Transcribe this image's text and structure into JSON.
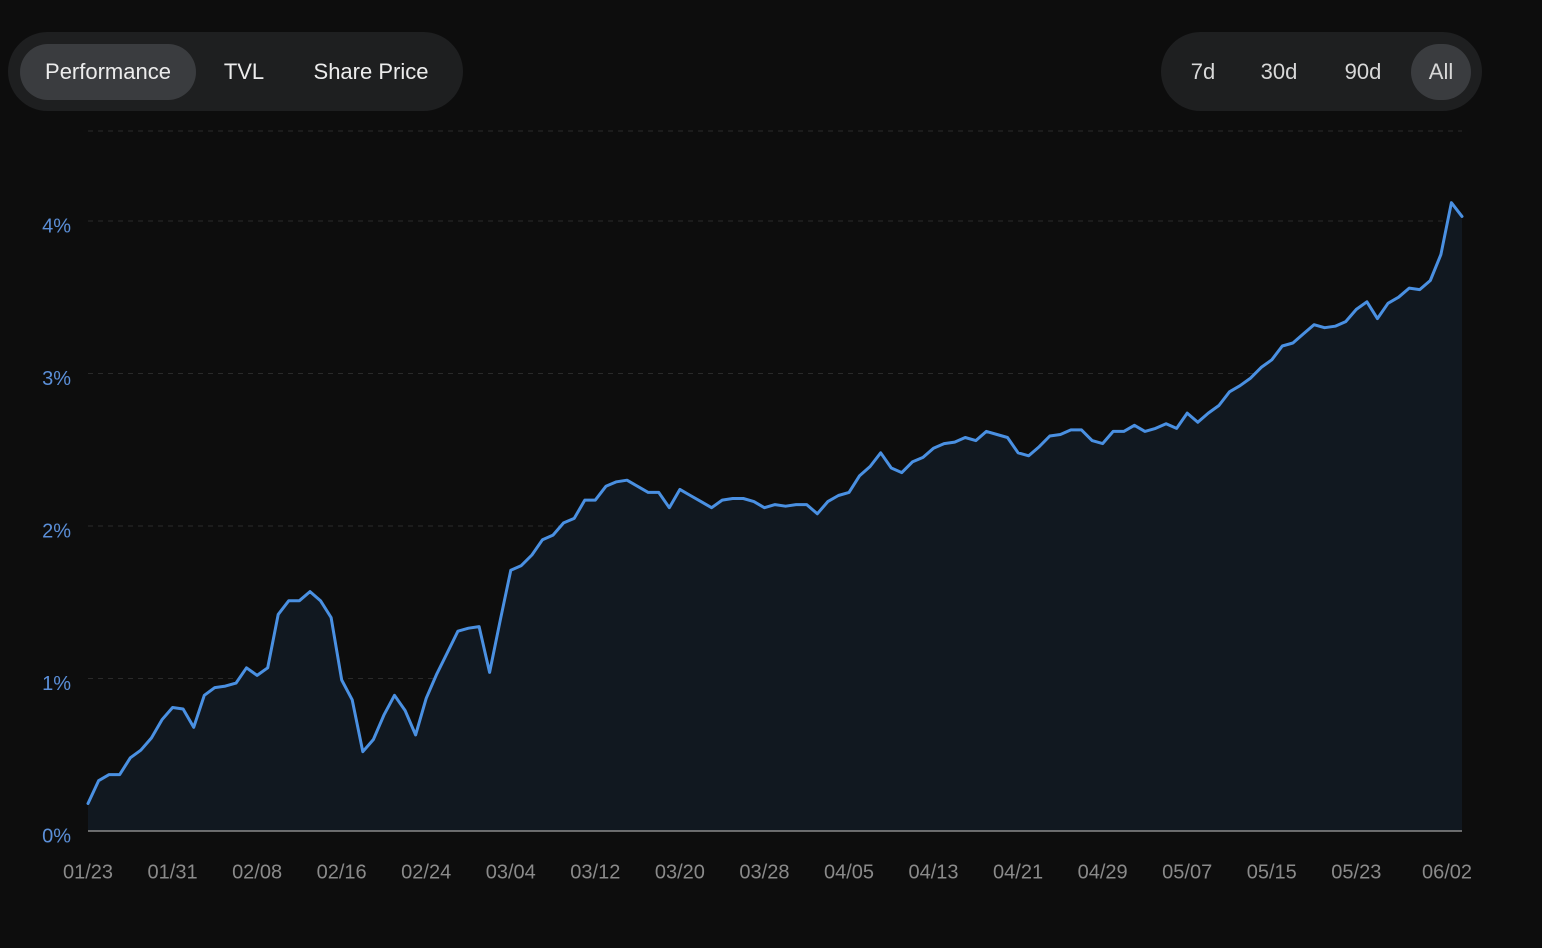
{
  "controls": {
    "tabs": [
      {
        "label": "Performance",
        "selected": true
      },
      {
        "label": "TVL",
        "selected": false
      },
      {
        "label": "Share Price",
        "selected": false
      }
    ],
    "ranges": [
      {
        "label": "7d",
        "selected": false
      },
      {
        "label": "30d",
        "selected": false
      },
      {
        "label": "90d",
        "selected": false
      },
      {
        "label": "All",
        "selected": true
      }
    ]
  },
  "chart_data": {
    "type": "line",
    "categories": [
      "01/23",
      null,
      null,
      null,
      null,
      null,
      null,
      null,
      "01/31",
      null,
      null,
      null,
      null,
      null,
      null,
      null,
      "02/08",
      null,
      null,
      null,
      null,
      null,
      null,
      null,
      "02/16",
      null,
      null,
      null,
      null,
      null,
      null,
      null,
      "02/24",
      null,
      null,
      null,
      null,
      null,
      null,
      null,
      "03/04",
      null,
      null,
      null,
      null,
      null,
      null,
      null,
      "03/12",
      null,
      null,
      null,
      null,
      null,
      null,
      null,
      "03/20",
      null,
      null,
      null,
      null,
      null,
      null,
      null,
      "03/28",
      null,
      null,
      null,
      null,
      null,
      null,
      null,
      "04/05",
      null,
      null,
      null,
      null,
      null,
      null,
      null,
      "04/13",
      null,
      null,
      null,
      null,
      null,
      null,
      null,
      "04/21",
      null,
      null,
      null,
      null,
      null,
      null,
      null,
      "04/29",
      null,
      null,
      null,
      null,
      null,
      null,
      null,
      "05/07",
      null,
      null,
      null,
      null,
      null,
      null,
      null,
      "05/15",
      null,
      null,
      null,
      null,
      null,
      null,
      null,
      "05/23",
      null,
      null,
      null,
      null,
      null,
      null,
      null,
      null,
      null,
      "06/02"
    ],
    "values": [
      0.18,
      0.33,
      0.37,
      0.37,
      0.48,
      0.53,
      0.61,
      0.73,
      0.81,
      0.8,
      0.68,
      0.89,
      0.94,
      0.95,
      0.97,
      1.07,
      1.02,
      1.07,
      1.42,
      1.51,
      1.51,
      1.57,
      1.51,
      1.4,
      0.99,
      0.86,
      0.52,
      0.6,
      0.76,
      0.89,
      0.79,
      0.63,
      0.87,
      1.03,
      1.17,
      1.31,
      1.33,
      1.34,
      1.04,
      1.38,
      1.71,
      1.74,
      1.81,
      1.91,
      1.94,
      2.02,
      2.05,
      2.17,
      2.17,
      2.26,
      2.29,
      2.3,
      2.26,
      2.22,
      2.22,
      2.12,
      2.24,
      2.2,
      2.16,
      2.12,
      2.17,
      2.18,
      2.18,
      2.16,
      2.12,
      2.14,
      2.13,
      2.14,
      2.14,
      2.08,
      2.16,
      2.2,
      2.22,
      2.33,
      2.39,
      2.48,
      2.38,
      2.35,
      2.42,
      2.45,
      2.51,
      2.54,
      2.55,
      2.58,
      2.56,
      2.62,
      2.6,
      2.58,
      2.48,
      2.46,
      2.52,
      2.59,
      2.6,
      2.63,
      2.63,
      2.56,
      2.54,
      2.62,
      2.62,
      2.66,
      2.62,
      2.64,
      2.67,
      2.64,
      2.74,
      2.68,
      2.74,
      2.79,
      2.88,
      2.92,
      2.97,
      3.04,
      3.09,
      3.18,
      3.2,
      3.26,
      3.32,
      3.3,
      3.31,
      3.34,
      3.42,
      3.47,
      3.36,
      3.46,
      3.5,
      3.56,
      3.55,
      3.61,
      3.78,
      4.12,
      4.03
    ],
    "color": "#4a90e2",
    "ylim": [
      0,
      4.59
    ],
    "yticks": [
      {
        "value": 0,
        "label": "0%"
      },
      {
        "value": 1,
        "label": "1%"
      },
      {
        "value": 2,
        "label": "2%"
      },
      {
        "value": 3,
        "label": "3%"
      },
      {
        "value": 4,
        "label": "4%"
      }
    ],
    "grid": true
  }
}
